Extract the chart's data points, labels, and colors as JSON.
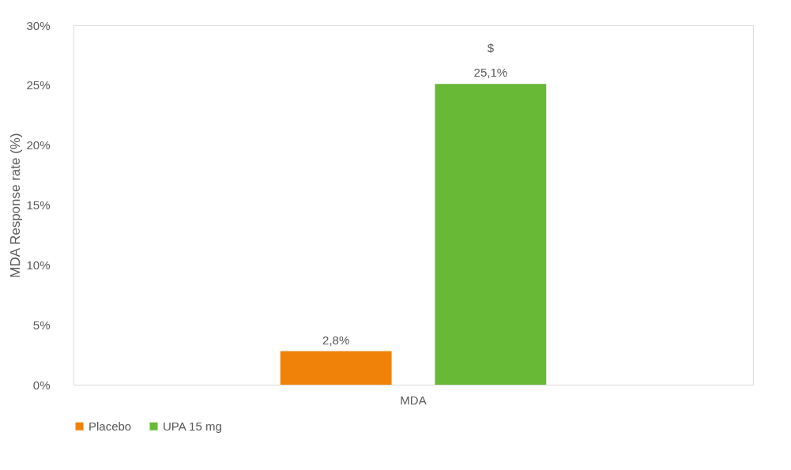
{
  "chart_data": {
    "type": "bar",
    "categories": [
      "MDA"
    ],
    "ylabel": "MDA Response rate (%)",
    "series": [
      {
        "name": "Placebo",
        "color": "#f0820a",
        "values": [
          2.8
        ],
        "value_labels": [
          "2,8%"
        ]
      },
      {
        "name": "UPA 15 mg",
        "color": "#68b936",
        "values": [
          25.1
        ],
        "value_labels": [
          "25,1%"
        ]
      }
    ],
    "annotations": [
      "$"
    ],
    "ylim": [
      0,
      30
    ],
    "yticks": [
      {
        "value": 0,
        "label": "0%"
      },
      {
        "value": 5,
        "label": "5%"
      },
      {
        "value": 10,
        "label": "10%"
      },
      {
        "value": 15,
        "label": "15%"
      },
      {
        "value": 20,
        "label": "20%"
      },
      {
        "value": 25,
        "label": "25%"
      },
      {
        "value": 30,
        "label": "30%"
      }
    ],
    "grid": false,
    "legend": "bottom"
  }
}
